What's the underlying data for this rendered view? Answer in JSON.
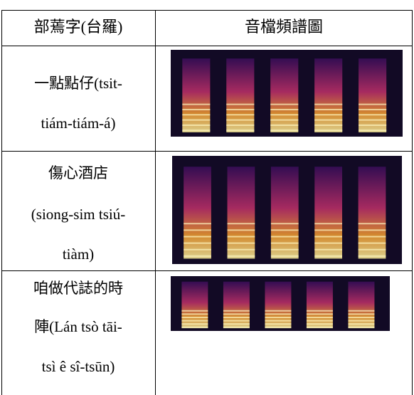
{
  "table": {
    "header": [
      "部蔫字(台羅)",
      "音檔頻譜圖"
    ],
    "rows": [
      {
        "lines": [
          "一點點仔(tsit-",
          "tiám-tiám-á)"
        ]
      },
      {
        "lines": [
          "傷心酒店",
          "(siong-sim tsiú-",
          "tiàm)"
        ]
      },
      {
        "lines": [
          "咱做代誌的時",
          "陣(Lán tsò tāi-",
          "tsì ê sî-tsūn)"
        ]
      }
    ]
  }
}
